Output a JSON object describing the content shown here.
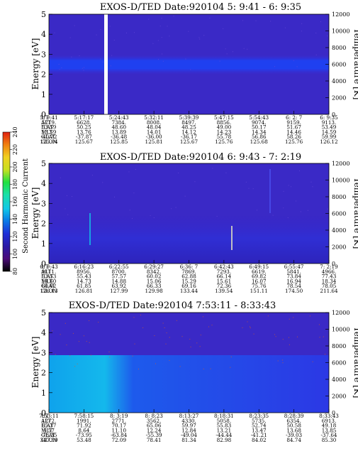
{
  "colorbar": {
    "label": "Second Harmonic Current",
    "ticks": [
      80,
      100,
      120,
      140,
      160,
      180,
      200,
      220,
      240
    ],
    "colors": [
      "#000000",
      "#4b0a78",
      "#2a1aa6",
      "#1f2fd8",
      "#0a78e6",
      "#10c8e8",
      "#19e0a8",
      "#20e040",
      "#c8e020",
      "#f0d020",
      "#f08010",
      "#e02010"
    ]
  },
  "panels": [
    {
      "title": "EXOS-D/TED   Date:920104   5: 9:41 - 6: 9:35",
      "ylabel": "Energy [eV]",
      "yticks": [
        "0",
        "1",
        "2",
        "3",
        "4",
        "5"
      ],
      "rlabel": "Temperature [K]",
      "rticks": [
        "0",
        "2000",
        "4000",
        "6000",
        "8000",
        "10000",
        "12000"
      ],
      "orbit": {
        "labels": [
          "UT",
          "ALT",
          "ILAT",
          "MLT",
          "GLAT",
          "GLON"
        ],
        "cols": [
          [
            "5: 9:41",
            "5719.",
            "53.59",
            "13.59",
            "-40.72",
            "125.04"
          ],
          [
            "5:17:17",
            "6628.",
            "50.25",
            "13.76",
            "-37.87",
            "125.67"
          ],
          [
            "5:24:43",
            "7384.",
            "48.60",
            "13.89",
            "-36.48",
            "125.85"
          ],
          [
            "5:32:11",
            "8008.",
            "48.04",
            "14.01",
            "-36.00",
            "125.81"
          ],
          [
            "5:39:39",
            "8497.",
            "48.25",
            "14.12",
            "-36.17",
            "125.67"
          ],
          [
            "5:47:15",
            "8856.",
            "49.00",
            "14.23",
            "55.78",
            "125.76"
          ],
          [
            "5:54:43",
            "9074.",
            "50.17",
            "14.34",
            "56.86",
            "125.68"
          ],
          [
            "6: 2: 7",
            "9159.",
            "51.67",
            "14.46",
            "58.26",
            "125.76"
          ],
          [
            "6: 9:35",
            "9113.",
            "53.49",
            "14.59",
            "59.99",
            "126.12"
          ]
        ]
      }
    },
    {
      "title": "EXOS-D/TED   Date:920104   6: 9:43 - 7: 2:19",
      "ylabel": "Energy [eV]",
      "yticks": [
        "0",
        "1",
        "2",
        "3",
        "4",
        "5"
      ],
      "rlabel": "Temperature [K]",
      "rticks": [
        "0",
        "2000",
        "4000",
        "6000",
        "8000",
        "10000",
        "12000"
      ],
      "orbit": {
        "labels": [
          "UT",
          "ALT",
          "ILAT",
          "MLT",
          "GLAT",
          "GLON"
        ],
        "cols": [
          [
            "6: 9:43",
            "9111.",
            "53.53",
            "14.60",
            "60.02",
            "126.13"
          ],
          [
            "6:16:23",
            "8956.",
            "55.43",
            "14.73",
            "61.85",
            "126.81"
          ],
          [
            "6:22:55",
            "8700.",
            "57.57",
            "14.88",
            "63.92",
            "127.99"
          ],
          [
            "6:29:27",
            "8342.",
            "60.02",
            "15.06",
            "66.33",
            "129.98"
          ],
          [
            "6:36: 7",
            "7869.",
            "62.88",
            "15.29",
            "69.16",
            "133.44"
          ],
          [
            "6:42:43",
            "7293.",
            "66.14",
            "15.61",
            "72.36",
            "139.54"
          ],
          [
            "6:49:15",
            "6619.",
            "69.82",
            "16.07",
            "75.76",
            "151.11"
          ],
          [
            "6:55:47",
            "5841.",
            "73.84",
            "16.94",
            "78.54",
            "174.50"
          ],
          [
            "7: 2:19",
            "4966.",
            "77.43",
            "18.34",
            "78.05",
            "211.64"
          ]
        ]
      }
    },
    {
      "title": "EXOS-D/TED   Date:920104   7:53:11 - 8:33:43",
      "ylabel": "Energy [eV]",
      "yticks": [
        "0",
        "1",
        "2",
        "3",
        "4",
        "5"
      ],
      "rlabel": "Temperature [K]",
      "rticks": [
        "0",
        "2000",
        "4000",
        "6000",
        "8000",
        "10000",
        "12000"
      ],
      "orbit": {
        "labels": [
          "UT",
          "ALT",
          "ILAT",
          "MLT",
          "GLAT",
          "GLON"
        ],
        "cols": [
          [
            "7:53:11",
            "1272.",
            "65.37",
            "5.57",
            "-78.35",
            "347.59"
          ],
          [
            "7:58:15",
            "1991.",
            "71.92",
            "8.64",
            "-73.95",
            "53.48"
          ],
          [
            "8: 3:19",
            "2771.",
            "70.17",
            "11.10",
            "-63.84",
            "72.09"
          ],
          [
            "8: 8:23",
            "3562.",
            "65.06",
            "12.24",
            "-55.39",
            "78.41"
          ],
          [
            "8:13:27",
            "4330.",
            "59.97",
            "12.84",
            "-49.04",
            "81.34"
          ],
          [
            "8:18:31",
            "5058.",
            "55.83",
            "13.21",
            "-44.44",
            "82.98"
          ],
          [
            "8:23:35",
            "5735.",
            "52.74",
            "13.47",
            "-41.21",
            "84.02"
          ],
          [
            "8:28:39",
            "6354.",
            "50.58",
            "13.68",
            "-39.03",
            "84.74"
          ],
          [
            "8:33:43",
            "6913.",
            "49.18",
            "13.85",
            "-37.64",
            "85.30"
          ]
        ]
      }
    }
  ],
  "chart_data": [
    {
      "type": "heatmap",
      "title": "EXOS-D/TED   Date:920104   5: 9:41 - 6: 9:35",
      "xlabel": "",
      "ylabel": "Energy [eV]",
      "y2label": "Temperature [K]",
      "x": [
        "5: 9:41",
        "5:17:17",
        "5:24:43",
        "5:32:11",
        "5:39:39",
        "5:47:15",
        "5:54:43",
        "6: 2: 7",
        "6: 9:35"
      ],
      "ylim": [
        0,
        5
      ],
      "y2lim": [
        0,
        12000
      ],
      "band_center_ev": 2.3,
      "band_halfwidth_ev": 0.5,
      "gap_at_x_fraction": 0.19,
      "colorbar_range": [
        80,
        240
      ],
      "bursts": []
    },
    {
      "type": "heatmap",
      "title": "EXOS-D/TED   Date:920104   6: 9:43 - 7: 2:19",
      "xlabel": "",
      "ylabel": "Energy [eV]",
      "y2label": "Temperature [K]",
      "x": [
        "6: 9:43",
        "6:16:23",
        "6:22:55",
        "6:29:27",
        "6:36: 7",
        "6:42:43",
        "6:49:15",
        "6:55:47",
        "7: 2:19"
      ],
      "ylim": [
        0,
        5
      ],
      "y2lim": [
        0,
        12000
      ],
      "band_center_ev": 1.0,
      "band_halfwidth_ev": 0.8,
      "colorbar_range": [
        80,
        240
      ],
      "bursts": []
    },
    {
      "type": "heatmap",
      "title": "EXOS-D/TED   Date:920104   7:53:11 - 8:33:43",
      "xlabel": "",
      "ylabel": "Energy [eV]",
      "y2label": "Temperature [K]",
      "x": [
        "7:53:11",
        "7:58:15",
        "8: 3:19",
        "8: 8:23",
        "8:13:27",
        "8:18:31",
        "8:23:35",
        "8:28:39",
        "8:33:43"
      ],
      "ylim": [
        0,
        5
      ],
      "y2lim": [
        0,
        12000
      ],
      "band_center_ev": 1.2,
      "band_halfwidth_ev": 1.0,
      "colorbar_range": [
        80,
        240
      ],
      "bursts": []
    }
  ]
}
